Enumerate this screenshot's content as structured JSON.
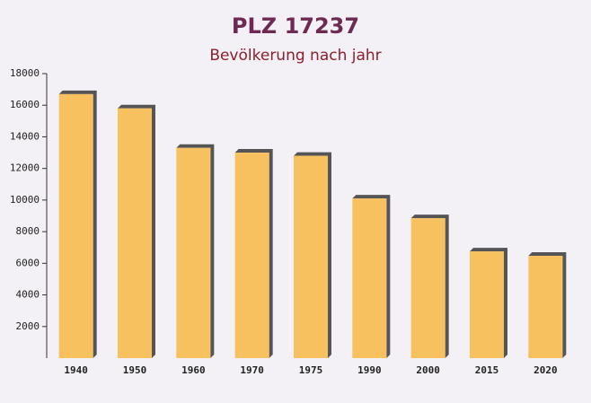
{
  "chart_data": {
    "type": "bar",
    "title": "PLZ 17237",
    "subtitle": "Bevölkerung nach jahr",
    "categories": [
      "1940",
      "1950",
      "1960",
      "1970",
      "1975",
      "1990",
      "2000",
      "2015",
      "2020"
    ],
    "values": [
      16700,
      15800,
      13300,
      13000,
      12800,
      10100,
      8850,
      6750,
      6470
    ],
    "color": "#f7c15f",
    "side_color": "#555555",
    "ylim": [
      0,
      18000
    ],
    "yticks": [
      2000,
      4000,
      6000,
      8000,
      10000,
      12000,
      14000,
      16000,
      18000
    ]
  }
}
